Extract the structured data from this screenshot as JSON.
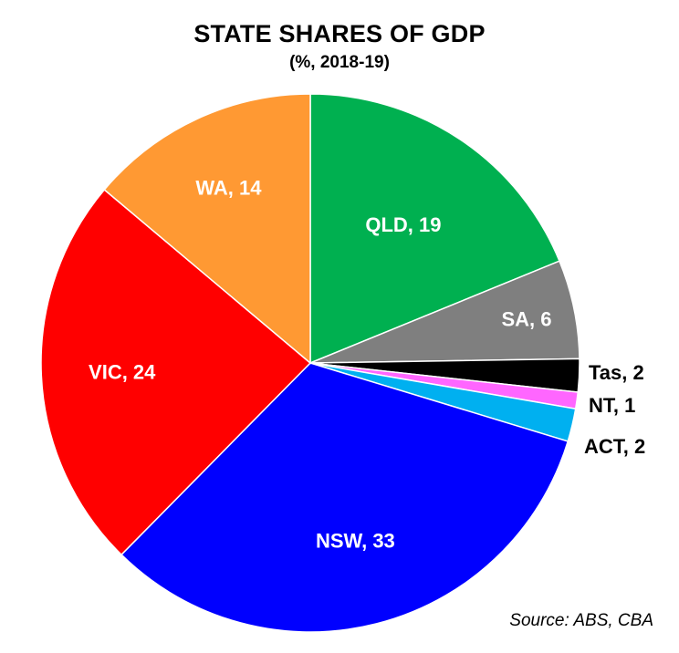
{
  "chart_data": {
    "type": "pie",
    "title": "STATE SHARES OF GDP",
    "subtitle": "(%, 2018-19)",
    "slices": [
      {
        "name": "QLD",
        "value": 19,
        "label": "QLD, 19",
        "color": "#00b050"
      },
      {
        "name": "SA",
        "value": 6,
        "label": "SA, 6",
        "color": "#7f7f7f"
      },
      {
        "name": "Tas",
        "value": 2,
        "label": "Tas, 2",
        "color": "#000000"
      },
      {
        "name": "NT",
        "value": 1,
        "label": "NT, 1",
        "color": "#ff66ff"
      },
      {
        "name": "ACT",
        "value": 2,
        "label": "ACT, 2",
        "color": "#00b0f0"
      },
      {
        "name": "NSW",
        "value": 33,
        "label": "NSW, 33",
        "color": "#0000ff"
      },
      {
        "name": "VIC",
        "value": 24,
        "label": "VIC, 24",
        "color": "#ff0000"
      },
      {
        "name": "WA",
        "value": 14,
        "label": "WA, 14",
        "color": "#ff9933"
      }
    ],
    "source": "Source: ABS, CBA"
  }
}
